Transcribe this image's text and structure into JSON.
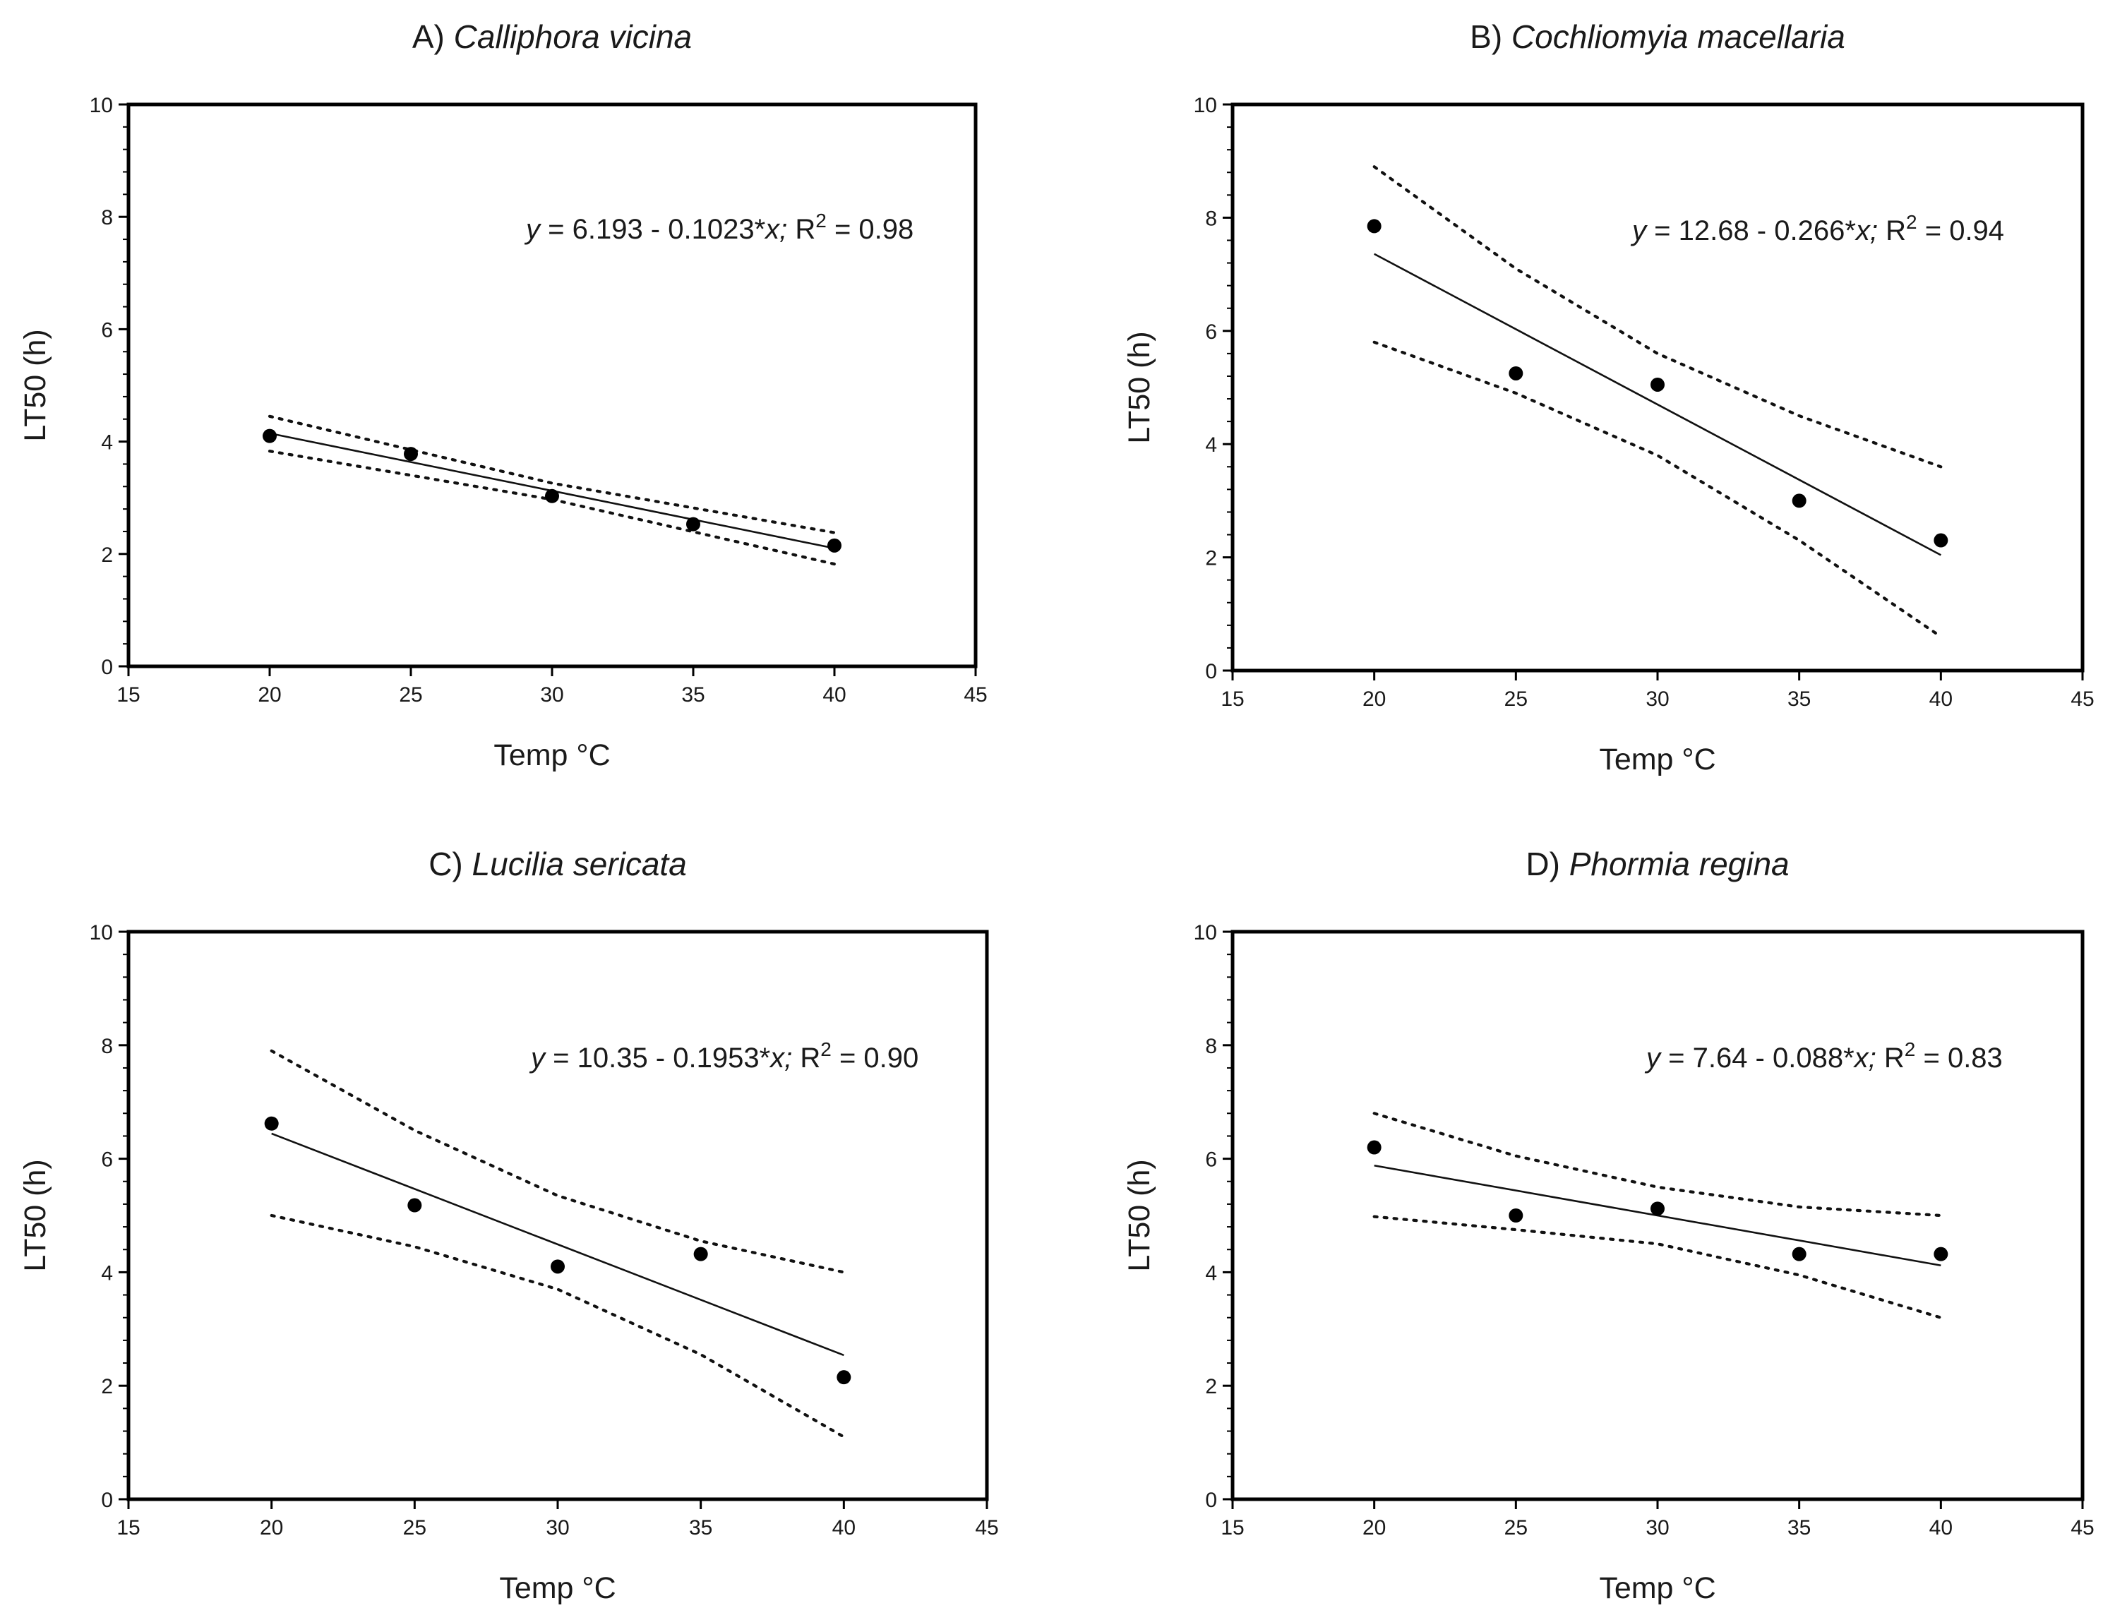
{
  "chart_data": [
    {
      "type": "scatter",
      "title_prefix": "A) ",
      "title_species": "Calliphora vicina",
      "xlabel": "Temp °C",
      "ylabel": "LT50 (h)",
      "xlim": [
        15,
        45
      ],
      "ylim": [
        0,
        10
      ],
      "xticks": [
        "15",
        "20",
        "25",
        "30",
        "35",
        "40",
        "45"
      ],
      "yticks": [
        "0",
        "2",
        "4",
        "6",
        "8",
        "10"
      ],
      "points": {
        "x": [
          20,
          25,
          30,
          35,
          40
        ],
        "y": [
          4.1,
          3.78,
          3.03,
          2.53,
          2.15
        ]
      },
      "fit": {
        "intercept": 6.193,
        "slope": -0.1023,
        "x_range": [
          20,
          40
        ]
      },
      "ci_upper": {
        "x": [
          20,
          30,
          40
        ],
        "y": [
          4.45,
          3.26,
          2.38
        ]
      },
      "ci_lower": {
        "x": [
          20,
          30,
          40
        ],
        "y": [
          3.83,
          2.97,
          1.82
        ]
      },
      "equation": {
        "y": "y",
        "eq": " = 6.193 - 0.1023*",
        "x": "x;",
        "r": " R",
        "sup": "2",
        "val": " = 0.98"
      }
    },
    {
      "type": "scatter",
      "title_prefix": "B) ",
      "title_species": "Cochliomyia macellaria",
      "xlabel": "Temp °C",
      "ylabel": "LT50 (h)",
      "xlim": [
        15,
        45
      ],
      "ylim": [
        0,
        10
      ],
      "xticks": [
        "15",
        "20",
        "25",
        "30",
        "35",
        "40",
        "45"
      ],
      "yticks": [
        "0",
        "2",
        "4",
        "6",
        "8",
        "10"
      ],
      "points": {
        "x": [
          20,
          25,
          30,
          35,
          40
        ],
        "y": [
          7.85,
          5.25,
          5.05,
          3.0,
          2.3
        ]
      },
      "fit": {
        "intercept": 12.68,
        "slope": -0.266,
        "x_range": [
          20,
          40
        ]
      },
      "ci_upper": {
        "x": [
          20,
          25,
          30,
          35,
          40
        ],
        "y": [
          8.9,
          7.1,
          5.6,
          4.5,
          3.6
        ]
      },
      "ci_lower": {
        "x": [
          20,
          25,
          30,
          35,
          40
        ],
        "y": [
          5.8,
          4.9,
          3.8,
          2.3,
          0.6
        ]
      },
      "equation": {
        "y": "y",
        "eq": " = 12.68 - 0.266*",
        "x": "x;",
        "r": " R",
        "sup": "2",
        "val": " = 0.94"
      }
    },
    {
      "type": "scatter",
      "title_prefix": "C) ",
      "title_species": "Lucilia sericata",
      "xlabel": "Temp °C",
      "ylabel": "LT50 (h)",
      "xlim": [
        15,
        45
      ],
      "ylim": [
        0,
        10
      ],
      "xticks": [
        "15",
        "20",
        "25",
        "30",
        "35",
        "40",
        "45"
      ],
      "yticks": [
        "0",
        "2",
        "4",
        "6",
        "8",
        "10"
      ],
      "points": {
        "x": [
          20,
          25,
          30,
          35,
          40
        ],
        "y": [
          6.62,
          5.18,
          4.1,
          4.32,
          2.15
        ]
      },
      "fit": {
        "intercept": 10.35,
        "slope": -0.1953,
        "x_range": [
          20,
          40
        ]
      },
      "ci_upper": {
        "x": [
          20,
          25,
          30,
          35,
          40
        ],
        "y": [
          7.9,
          6.5,
          5.35,
          4.55,
          4.0
        ]
      },
      "ci_lower": {
        "x": [
          20,
          25,
          30,
          35,
          40
        ],
        "y": [
          5.0,
          4.45,
          3.7,
          2.55,
          1.1
        ]
      },
      "equation": {
        "y": "y",
        "eq": " = 10.35 - 0.1953*",
        "x": "x;",
        "r": " R",
        "sup": "2",
        "val": " = 0.90"
      }
    },
    {
      "type": "scatter",
      "title_prefix": "D) ",
      "title_species": "Phormia regina",
      "xlabel": "Temp °C",
      "ylabel": "LT50 (h)",
      "xlim": [
        15,
        45
      ],
      "ylim": [
        0,
        10
      ],
      "xticks": [
        "15",
        "20",
        "25",
        "30",
        "35",
        "40",
        "45"
      ],
      "yticks": [
        "0",
        "2",
        "4",
        "6",
        "8",
        "10"
      ],
      "points": {
        "x": [
          20,
          25,
          30,
          35,
          40
        ],
        "y": [
          6.2,
          5.0,
          5.12,
          4.32,
          4.32
        ]
      },
      "fit": {
        "intercept": 7.64,
        "slope": -0.088,
        "x_range": [
          20,
          40
        ]
      },
      "ci_upper": {
        "x": [
          20,
          25,
          30,
          35,
          40
        ],
        "y": [
          6.8,
          6.05,
          5.5,
          5.15,
          5.0
        ]
      },
      "ci_lower": {
        "x": [
          20,
          25,
          30,
          35,
          40
        ],
        "y": [
          4.98,
          4.75,
          4.5,
          3.95,
          3.2
        ]
      },
      "equation": {
        "y": "y",
        "eq": " = 7.64 - 0.088*",
        "x": "x;",
        "r": " R",
        "sup": "2",
        "val": " = 0.83"
      }
    }
  ]
}
